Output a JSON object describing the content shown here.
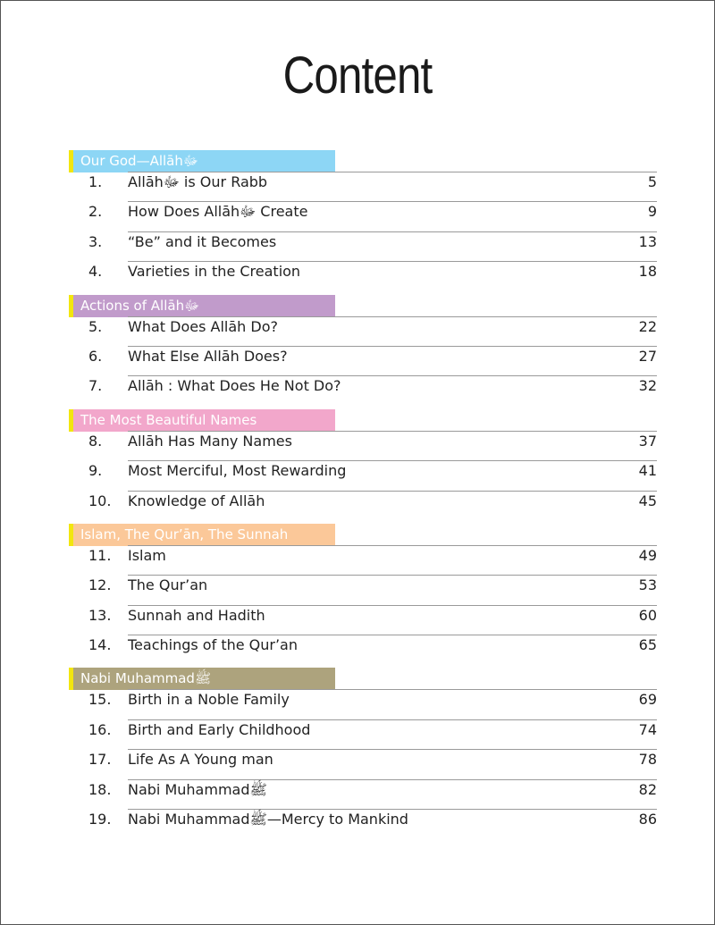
{
  "title": "Content",
  "sections": [
    {
      "name": "Our God—Allāhﷻ",
      "color": "#8dd6f5",
      "items": [
        {
          "num": "1.",
          "label": "Allāhﷻ is Our Rabb",
          "page": "5"
        },
        {
          "num": "2.",
          "label": "How Does Allāhﷻ Create",
          "page": "9"
        },
        {
          "num": "3.",
          "label": "“Be” and it Becomes",
          "page": "13"
        },
        {
          "num": "4.",
          "label": "Varieties in the Creation",
          "page": "18"
        }
      ]
    },
    {
      "name": "Actions of Allāhﷻ",
      "color": "#c19bcb",
      "items": [
        {
          "num": "5.",
          "label": "What Does Allāh Do?",
          "page": "22"
        },
        {
          "num": "6.",
          "label": "What Else Allāh Does?",
          "page": "27"
        },
        {
          "num": "7.",
          "label": "Allāh : What Does He Not Do?",
          "page": "32"
        }
      ]
    },
    {
      "name": "The Most Beautiful Names",
      "color": "#f2a7cb",
      "items": [
        {
          "num": "8.",
          "label": "Allāh Has Many Names",
          "page": "37"
        },
        {
          "num": "9.",
          "label": "Most Merciful, Most Rewarding",
          "page": "41"
        },
        {
          "num": "10.",
          "label": "Knowledge of Allāh",
          "page": "45"
        }
      ]
    },
    {
      "name": "Islam, The Qur’ān, The Sunnah",
      "color": "#fbc899",
      "items": [
        {
          "num": "11.",
          "label": "Islam",
          "page": "49"
        },
        {
          "num": "12.",
          "label": "The Qur’an",
          "page": "53"
        },
        {
          "num": "13.",
          "label": "Sunnah and Hadith",
          "page": "60"
        },
        {
          "num": "14.",
          "label": "Teachings of the Qur’an",
          "page": "65"
        }
      ]
    },
    {
      "name": "Nabi Muhammadﷺ",
      "color": "#ada37d",
      "items": [
        {
          "num": "15.",
          "label": "Birth in a Noble Family",
          "page": "69"
        },
        {
          "num": "16.",
          "label": "Birth and Early Childhood",
          "page": "74"
        },
        {
          "num": "17.",
          "label": "Life As A Young man",
          "page": "78"
        },
        {
          "num": "18.",
          "label": "Nabi Muhammadﷺ",
          "page": "82"
        },
        {
          "num": "19.",
          "label": "Nabi Muhammadﷺ—Mercy to Mankind",
          "page": "86"
        }
      ]
    }
  ]
}
